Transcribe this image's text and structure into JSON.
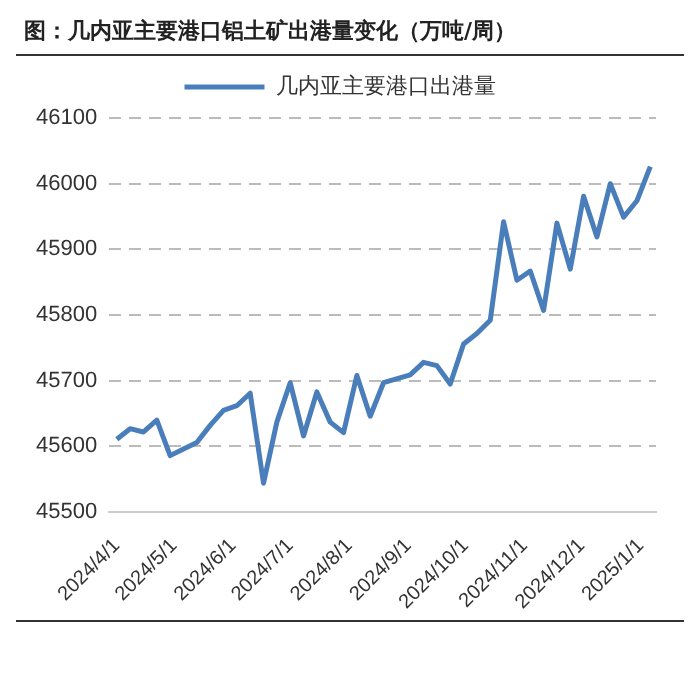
{
  "chart_data": {
    "type": "line",
    "title": "图：几内亚主要港口铝土矿出港量变化（万吨/周）",
    "x": [
      "2024-04-01",
      "2024-04-08",
      "2024-04-15",
      "2024-04-22",
      "2024-04-29",
      "2024-05-06",
      "2024-05-13",
      "2024-05-20",
      "2024-05-27",
      "2024-06-03",
      "2024-06-10",
      "2024-06-17",
      "2024-06-24",
      "2024-07-01",
      "2024-07-08",
      "2024-07-15",
      "2024-07-22",
      "2024-07-29",
      "2024-08-05",
      "2024-08-12",
      "2024-08-19",
      "2024-09-02",
      "2024-09-09",
      "2024-09-16",
      "2024-09-23",
      "2024-09-30",
      "2024-10-07",
      "2024-10-14",
      "2024-10-21",
      "2024-10-28",
      "2024-11-04",
      "2024-11-11",
      "2024-11-18",
      "2024-11-25",
      "2024-12-02",
      "2024-12-09",
      "2024-12-16",
      "2024-12-23",
      "2024-12-30",
      "2025-01-06"
    ],
    "series": [
      {
        "name": "几内亚主要港口出港量",
        "color": "#4a7ebb",
        "values": [
          45611,
          45627,
          45622,
          45640,
          45586,
          45596,
          45606,
          45632,
          45655,
          45662,
          45681,
          45544,
          45637,
          45697,
          45616,
          45683,
          45637,
          45621,
          45708,
          45646,
          45697,
          45709,
          45728,
          45723,
          45695,
          45756,
          45772,
          45792,
          45942,
          45853,
          45867,
          45807,
          45940,
          45870,
          45981,
          45919,
          46000,
          45949,
          45974,
          46026
        ]
      }
    ],
    "xlim": [
      "2024-03-28",
      "2025-01-09"
    ],
    "xticks": [
      {
        "value": "2024-04-01",
        "label": "2024/4/1"
      },
      {
        "value": "2024-05-01",
        "label": "2024/5/1"
      },
      {
        "value": "2024-06-01",
        "label": "2024/6/1"
      },
      {
        "value": "2024-07-01",
        "label": "2024/7/1"
      },
      {
        "value": "2024-08-01",
        "label": "2024/8/1"
      },
      {
        "value": "2024-09-01",
        "label": "2024/9/1"
      },
      {
        "value": "2024-10-01",
        "label": "2024/10/1"
      },
      {
        "value": "2024-11-01",
        "label": "2024/11/1"
      },
      {
        "value": "2024-12-01",
        "label": "2024/12/1"
      },
      {
        "value": "2025-01-01",
        "label": "2025/1/1"
      }
    ],
    "ylim": [
      45500,
      46100
    ],
    "yticks": [
      45500,
      45600,
      45700,
      45800,
      45900,
      46000,
      46100
    ],
    "grid": "y",
    "legend": "top",
    "marker": "none",
    "line_style": "solid"
  }
}
